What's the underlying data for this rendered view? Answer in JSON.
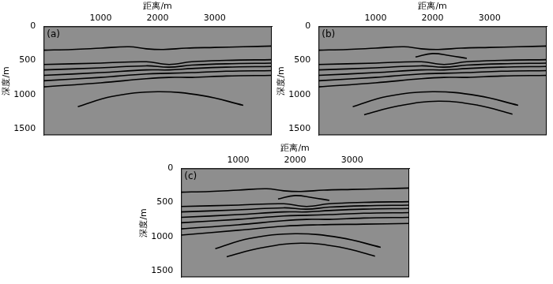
{
  "chart_data": [
    {
      "type": "line",
      "label": "(a)",
      "x_label": "距离/m",
      "y_label": "深度/m",
      "xlim": [
        0,
        4000
      ],
      "xticks": [
        1000,
        2000,
        3000
      ],
      "ylim": [
        0,
        1600
      ],
      "yticks": [
        0,
        500,
        1000,
        1500
      ],
      "grid": false,
      "color": "#000000",
      "series": [
        {
          "x": [
            0,
            500,
            1000,
            1500,
            1800,
            2100,
            2500,
            3000,
            3500,
            4000
          ],
          "values": [
            350,
            340,
            320,
            300,
            330,
            340,
            320,
            310,
            300,
            290
          ]
        },
        {
          "x": [
            0,
            1000,
            1800,
            2200,
            2600,
            3200,
            4000
          ],
          "values": [
            560,
            540,
            520,
            560,
            520,
            500,
            490
          ]
        },
        {
          "x": [
            0,
            1000,
            1800,
            2200,
            2600,
            3200,
            4000
          ],
          "values": [
            640,
            610,
            580,
            600,
            570,
            550,
            540
          ]
        },
        {
          "x": [
            0,
            1000,
            1800,
            2200,
            2600,
            3200,
            4000
          ],
          "values": [
            720,
            680,
            640,
            640,
            620,
            600,
            590
          ]
        },
        {
          "x": [
            0,
            1000,
            1800,
            2200,
            2600,
            3200,
            4000
          ],
          "values": [
            800,
            750,
            700,
            690,
            680,
            660,
            650
          ]
        },
        {
          "x": [
            0,
            1000,
            1800,
            2200,
            2600,
            3200,
            4000
          ],
          "values": [
            890,
            830,
            770,
            750,
            750,
            730,
            720
          ]
        },
        {
          "x": [
            600,
            1200,
            2000,
            2800,
            3500
          ],
          "values": [
            1180,
            1030,
            960,
            1020,
            1160
          ]
        }
      ]
    },
    {
      "type": "line",
      "label": "(b)",
      "x_label": "距离/m",
      "y_label": "深度/m",
      "xlim": [
        0,
        4000
      ],
      "xticks": [
        1000,
        2000,
        3000
      ],
      "ylim": [
        0,
        1600
      ],
      "yticks": [
        0,
        500,
        1000,
        1500
      ],
      "grid": false,
      "color": "#000000",
      "series": [
        {
          "x": [
            0,
            500,
            1000,
            1500,
            1800,
            2100,
            2500,
            3000,
            3500,
            4000
          ],
          "values": [
            350,
            340,
            320,
            300,
            330,
            340,
            320,
            310,
            300,
            290
          ]
        },
        {
          "x": [
            1700,
            2000,
            2300,
            2600
          ],
          "values": [
            450,
            400,
            430,
            470
          ]
        },
        {
          "x": [
            0,
            1000,
            1800,
            2200,
            2600,
            3200,
            4000
          ],
          "values": [
            560,
            540,
            520,
            560,
            520,
            500,
            490
          ]
        },
        {
          "x": [
            0,
            1000,
            1800,
            2200,
            2600,
            3200,
            4000
          ],
          "values": [
            640,
            610,
            580,
            600,
            570,
            550,
            540
          ]
        },
        {
          "x": [
            0,
            1000,
            1800,
            2200,
            2600,
            3200,
            4000
          ],
          "values": [
            720,
            680,
            640,
            640,
            620,
            600,
            590
          ]
        },
        {
          "x": [
            0,
            1000,
            1800,
            2200,
            2600,
            3200,
            4000
          ],
          "values": [
            800,
            750,
            700,
            690,
            680,
            660,
            650
          ]
        },
        {
          "x": [
            0,
            1000,
            1800,
            2200,
            2600,
            3200,
            4000
          ],
          "values": [
            890,
            830,
            770,
            750,
            750,
            730,
            720
          ]
        },
        {
          "x": [
            600,
            1200,
            2000,
            2800,
            3500
          ],
          "values": [
            1180,
            1030,
            960,
            1020,
            1160
          ]
        },
        {
          "x": [
            800,
            1400,
            2100,
            2800,
            3400
          ],
          "values": [
            1300,
            1170,
            1100,
            1160,
            1290
          ]
        }
      ]
    },
    {
      "type": "line",
      "label": "(c)",
      "x_label": "距离/m",
      "y_label": "深度/m",
      "xlim": [
        0,
        4000
      ],
      "xticks": [
        1000,
        2000,
        3000
      ],
      "ylim": [
        0,
        1600
      ],
      "yticks": [
        0,
        500,
        1000,
        1500
      ],
      "grid": false,
      "color": "#000000",
      "series": [
        {
          "x": [
            0,
            500,
            1000,
            1500,
            1800,
            2100,
            2500,
            3000,
            3500,
            4000
          ],
          "values": [
            350,
            340,
            320,
            300,
            330,
            340,
            320,
            310,
            300,
            290
          ]
        },
        {
          "x": [
            1700,
            2000,
            2300,
            2600
          ],
          "values": [
            450,
            400,
            430,
            470
          ]
        },
        {
          "x": [
            0,
            1000,
            1800,
            2200,
            2600,
            3200,
            4000
          ],
          "values": [
            560,
            540,
            520,
            560,
            520,
            500,
            490
          ]
        },
        {
          "x": [
            0,
            1000,
            1800,
            2200,
            2600,
            3200,
            4000
          ],
          "values": [
            640,
            610,
            580,
            600,
            570,
            550,
            540
          ]
        },
        {
          "x": [
            0,
            1000,
            1800,
            2200,
            2600,
            3200,
            4000
          ],
          "values": [
            720,
            680,
            640,
            640,
            620,
            600,
            590
          ]
        },
        {
          "x": [
            0,
            1000,
            1800,
            2200,
            2600,
            3200,
            4000
          ],
          "values": [
            800,
            750,
            700,
            690,
            680,
            660,
            650
          ]
        },
        {
          "x": [
            0,
            1000,
            1800,
            2200,
            2600,
            3200,
            4000
          ],
          "values": [
            890,
            830,
            770,
            750,
            750,
            730,
            720
          ]
        },
        {
          "x": [
            0,
            1000,
            1800,
            2400,
            3200,
            4000
          ],
          "values": [
            980,
            910,
            850,
            830,
            820,
            810
          ]
        },
        {
          "x": [
            600,
            1200,
            2000,
            2800,
            3500
          ],
          "values": [
            1180,
            1030,
            960,
            1020,
            1160
          ]
        },
        {
          "x": [
            800,
            1400,
            2100,
            2800,
            3400
          ],
          "values": [
            1300,
            1170,
            1100,
            1160,
            1290
          ]
        }
      ]
    }
  ]
}
